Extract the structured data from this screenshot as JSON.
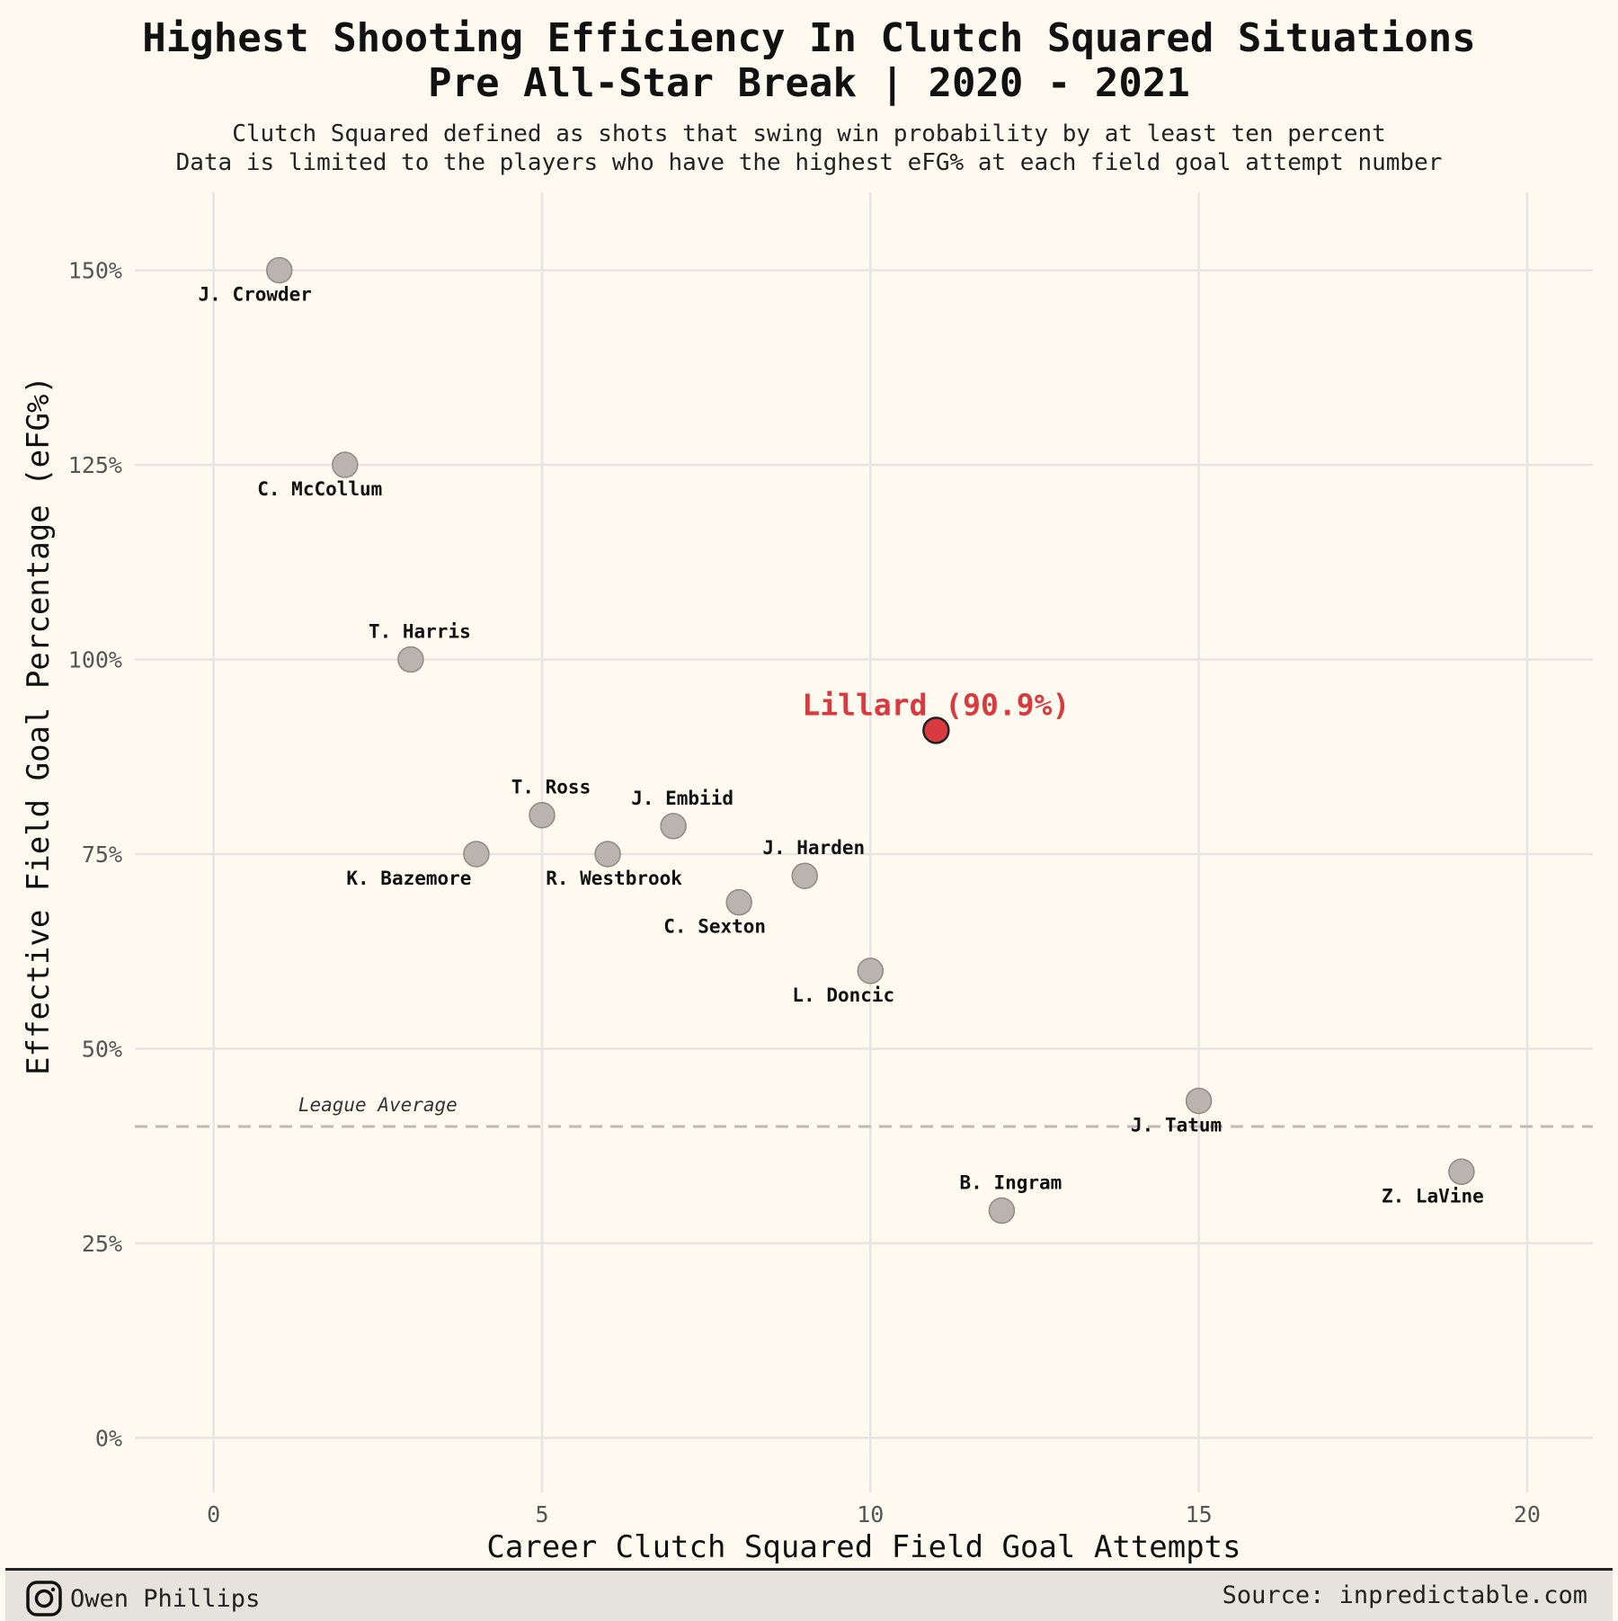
{
  "chart_data": {
    "type": "scatter",
    "title_line1": "Highest Shooting Efficiency In Clutch Squared Situations",
    "title_line2": "Pre All-Star Break | 2020 - 2021",
    "subtitle_line1": "Clutch Squared defined as shots that swing win probability by at least ten percent",
    "subtitle_line2": "Data is limited to the players who have the highest eFG% at each field goal attempt number",
    "xlabel": "Career Clutch Squared Field Goal Attempts",
    "ylabel": "Effective Field Goal Percentage (eFG%)",
    "xlim": [
      -1.2,
      21
    ],
    "ylim": [
      -7,
      160
    ],
    "x_ticks": [
      0,
      5,
      10,
      15,
      20
    ],
    "x_tick_labels": [
      "0",
      "5",
      "10",
      "15",
      "20"
    ],
    "y_ticks": [
      0,
      25,
      50,
      75,
      100,
      125,
      150
    ],
    "y_tick_labels": [
      "0%",
      "25%",
      "50%",
      "75%",
      "100%",
      "125%",
      "150%"
    ],
    "grid": true,
    "reference_line": {
      "y": 40,
      "label": "League Average"
    },
    "highlight_color": "#d93a3f",
    "point_color": "#b9b4ad",
    "points": [
      {
        "name": "J. Crowder",
        "x": 1,
        "y": 150,
        "label_pos": "below"
      },
      {
        "name": "C. McCollum",
        "x": 2,
        "y": 125,
        "label_pos": "below"
      },
      {
        "name": "T. Harris",
        "x": 3,
        "y": 100,
        "label_pos": "above"
      },
      {
        "name": "K. Bazemore",
        "x": 4,
        "y": 75,
        "label_pos": "below-left"
      },
      {
        "name": "T. Ross",
        "x": 5,
        "y": 80,
        "label_pos": "above"
      },
      {
        "name": "R. Westbrook",
        "x": 6,
        "y": 75,
        "label_pos": "below"
      },
      {
        "name": "J. Embiid",
        "x": 7,
        "y": 78.6,
        "label_pos": "above"
      },
      {
        "name": "C. Sexton",
        "x": 8,
        "y": 68.8,
        "label_pos": "below"
      },
      {
        "name": "J. Harden",
        "x": 9,
        "y": 72.2,
        "label_pos": "above"
      },
      {
        "name": "L. Doncic",
        "x": 10,
        "y": 60,
        "label_pos": "below"
      },
      {
        "name": "Lillard (90.9%)",
        "x": 11,
        "y": 90.9,
        "label_pos": "above",
        "highlight": true
      },
      {
        "name": "B. Ingram",
        "x": 12,
        "y": 29.2,
        "label_pos": "above"
      },
      {
        "name": "J. Tatum",
        "x": 15,
        "y": 43.3,
        "label_pos": "below"
      },
      {
        "name": "Z. LaVine",
        "x": 19,
        "y": 34.2,
        "label_pos": "below"
      }
    ]
  },
  "footer": {
    "author": "Owen Phillips",
    "source": "Source: inpredictable.com",
    "icon": "instagram-icon"
  }
}
